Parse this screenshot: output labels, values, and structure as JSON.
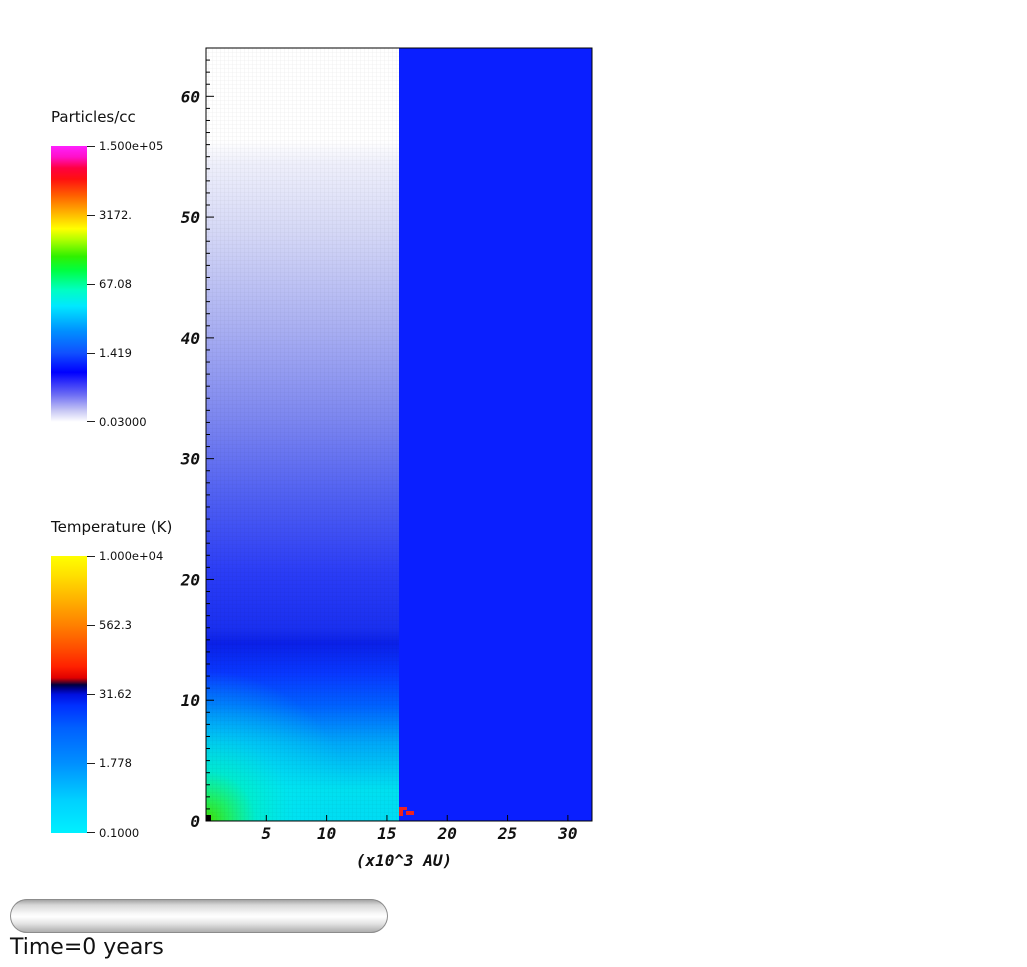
{
  "legends": {
    "density": {
      "title": "Particles/cc",
      "labels": [
        "1.500e+05",
        "3172.",
        "67.08",
        "1.419",
        "0.03000"
      ],
      "colormap": "white-blue-cyan-green-yellow-orange-red-magenta"
    },
    "temperature": {
      "title": "Temperature (K)",
      "labels": [
        "1.000e+04",
        "562.3",
        "31.62",
        "1.778",
        "0.1000"
      ],
      "colormap": "cyan-blue-navy-red-orange-yellow"
    }
  },
  "time": {
    "text": "Time=0 years",
    "slider_fraction": 0
  },
  "chart_data": {
    "type": "heatmap",
    "xlabel": "(x10^3 AU)",
    "ylabel": "",
    "xlim": [
      0,
      32
    ],
    "ylim": [
      0,
      64
    ],
    "x_ticks": [
      "5",
      "10",
      "15",
      "20",
      "25",
      "30"
    ],
    "y_ticks": [
      "0",
      "10",
      "20",
      "30",
      "40",
      "50",
      "60"
    ],
    "left_panel": {
      "x_range": [
        0,
        16
      ],
      "field": "Particles/cc",
      "grid": true
    },
    "right_panel": {
      "x_range": [
        16,
        32
      ],
      "field": "Temperature (K)",
      "uniform_color": "#0a1fff"
    },
    "colors": {
      "right_fill": "#0a1fff",
      "marker": "#ee2222"
    }
  }
}
